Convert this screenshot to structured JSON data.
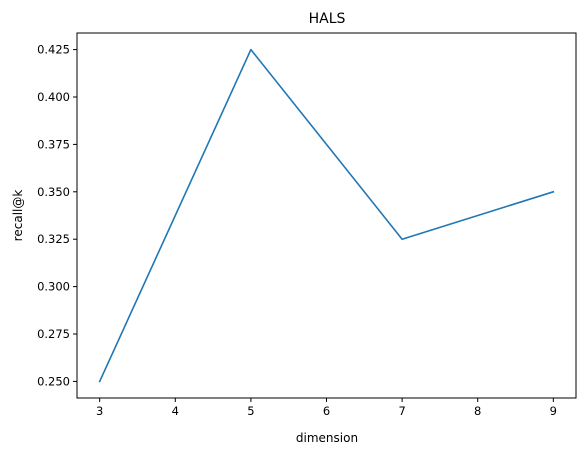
{
  "chart_data": {
    "type": "line",
    "title": "HALS",
    "xlabel": "dimension",
    "ylabel": "recall@k",
    "x": [
      3,
      5,
      7,
      9
    ],
    "series": [
      {
        "values": [
          0.25,
          0.425,
          0.325,
          0.35
        ],
        "color": "#1f77b4"
      }
    ],
    "xlim": [
      2.7,
      9.3
    ],
    "ylim": [
      0.24125,
      0.43375
    ],
    "xticks": [
      3,
      4,
      5,
      6,
      7,
      8,
      9
    ],
    "xtick_labels": [
      "3",
      "4",
      "5",
      "6",
      "7",
      "8",
      "9"
    ],
    "yticks": [
      0.25,
      0.275,
      0.3,
      0.325,
      0.35,
      0.375,
      0.4,
      0.425
    ],
    "ytick_labels": [
      "0.250",
      "0.275",
      "0.300",
      "0.325",
      "0.350",
      "0.375",
      "0.400",
      "0.425"
    ],
    "grid": false,
    "legend": false
  }
}
